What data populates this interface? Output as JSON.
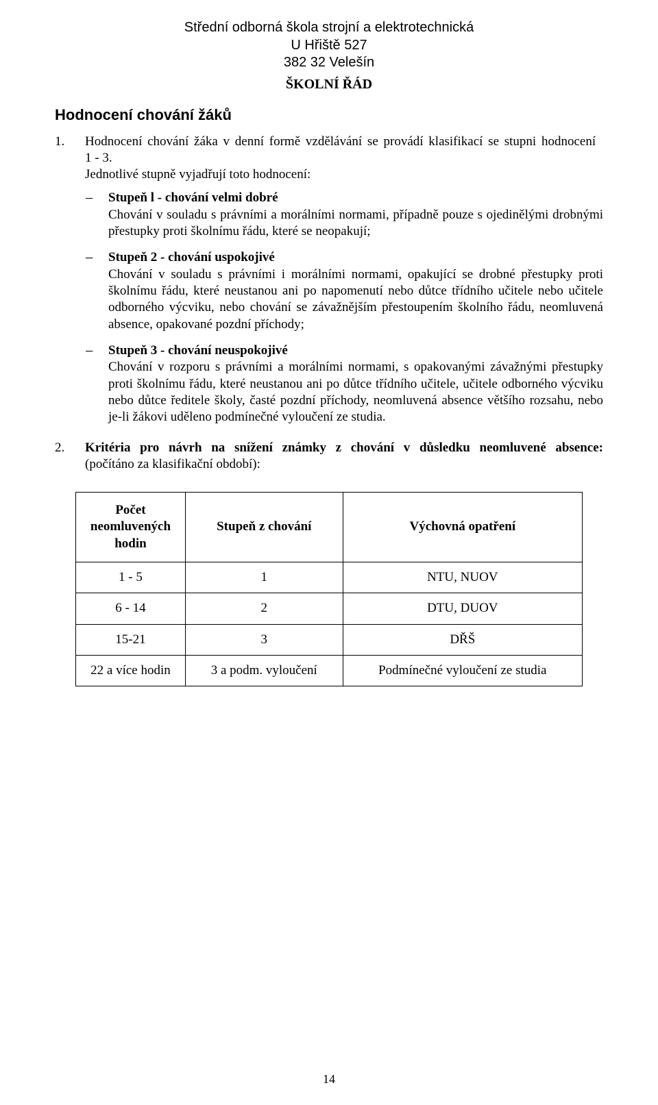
{
  "header": {
    "line1": "Střední odborná škola strojní a elektrotechnická",
    "line2": "U Hřiště 527",
    "line3": "382 32 Velešín",
    "rule_title": "ŠKOLNÍ ŘÁD"
  },
  "section_title": "Hodnocení chování žáků",
  "items": {
    "i1": {
      "num": "1.",
      "para": "Hodnocení chování žáka v denní formě vzdělávání se provádí klasifikací se stupni hodnocení",
      "range": "1 - 3.",
      "lead": "Jednotlivé stupně vyjadřují toto hodnocení:"
    },
    "bullets": {
      "b1": {
        "lead": "Stupeň l - chování velmi dobré",
        "body": "Chování v souladu s právními a morálními normami, případně pouze s ojedinělými drobnými přestupky proti školnímu řádu, které se neopakují;"
      },
      "b2": {
        "lead": "Stupeň 2 - chování uspokojivé",
        "body": "Chování v souladu s právními i morálními normami, opakující se drobné přestupky proti školnímu řádu, které neustanou ani po napomenutí nebo důtce třídního učitele nebo učitele odborného výcviku, nebo chování se závažnějším přestoupením školního řádu, neomluvená absence, opakované pozdní příchody;"
      },
      "b3": {
        "lead": "Stupeň 3 - chování neuspokojivé",
        "body": "Chování v rozporu s právními a morálními normami, s opakovanými závažnými přestupky proti školnímu řádu, které neustanou ani po důtce třídního učitele, učitele odborného výcviku nebo důtce ředitele školy, časté pozdní příchody, neomluvená absence většího rozsahu, nebo je-li žákovi uděleno podmínečné vyloučení ze studia."
      }
    },
    "i2": {
      "num": "2.",
      "lead_bold": "Kritéria pro návrh na snížení známky z chování v důsledku neomluvené absence:",
      "tail": " (počítáno za klasifikační období):"
    }
  },
  "table": {
    "columns": [
      "Počet neomluvených hodin",
      "Stupeň z chování",
      "Výchovná opatření"
    ],
    "rows": [
      [
        "1 - 5",
        "1",
        "NTU, NUOV"
      ],
      [
        "6 - 14",
        "2",
        "DTU, DUOV"
      ],
      [
        "15-21",
        "3",
        "DŘŠ"
      ],
      [
        "22 a více hodin",
        "3 a  podm. vyloučení",
        "Podmínečné vyloučení ze studia"
      ]
    ]
  },
  "page_number": "14"
}
